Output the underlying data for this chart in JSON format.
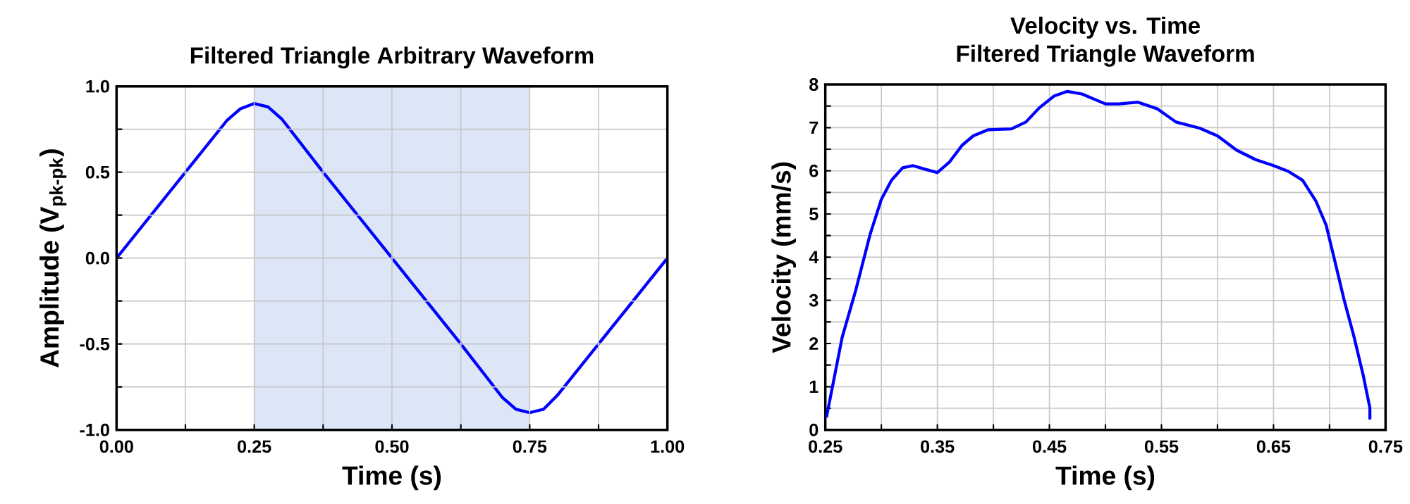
{
  "chart_data": [
    {
      "type": "line",
      "title": "Filtered Triangle Arbitrary Waveform",
      "xlabel": "Time (s)",
      "ylabel": "Amplitude (V$_{pk-pk}$)",
      "x": [
        0,
        0.125,
        0.2,
        0.225,
        0.25,
        0.275,
        0.3,
        0.375,
        0.5,
        0.625,
        0.7,
        0.725,
        0.75,
        0.775,
        0.8,
        0.875,
        1
      ],
      "series": [
        {
          "color": "#0000ff",
          "values": [
            0,
            0.5,
            0.8,
            0.87,
            0.9,
            0.88,
            0.81,
            0.5,
            0,
            -0.5,
            -0.81,
            -0.88,
            -0.9,
            -0.88,
            -0.8,
            -0.5,
            0
          ]
        }
      ],
      "xlim": [
        0,
        1
      ],
      "ylim": [
        -1,
        1
      ],
      "xticks": [
        {
          "value": 0,
          "label": "0.00"
        },
        {
          "value": 0.125,
          "label": null
        },
        {
          "value": 0.25,
          "label": "0.25"
        },
        {
          "value": 0.375,
          "label": null
        },
        {
          "value": 0.5,
          "label": "0.50"
        },
        {
          "value": 0.625,
          "label": null
        },
        {
          "value": 0.75,
          "label": "0.75"
        },
        {
          "value": 0.875,
          "label": null
        },
        {
          "value": 1,
          "label": "1.00"
        }
      ],
      "yticks": [
        {
          "value": -1,
          "label": "-1.0"
        },
        {
          "value": -0.75,
          "label": null
        },
        {
          "value": -0.5,
          "label": "-0.5"
        },
        {
          "value": -0.25,
          "label": null
        },
        {
          "value": 0,
          "label": "0.0"
        },
        {
          "value": 0.25,
          "label": null
        },
        {
          "value": 0.5,
          "label": "0.5"
        },
        {
          "value": 0.75,
          "label": null
        },
        {
          "value": 1,
          "label": "1.0"
        }
      ],
      "bands": [
        {
          "axis": "x",
          "from": 0.25,
          "to": 0.75,
          "color": "#dce6f7"
        }
      ],
      "grid": true,
      "line_style": "solid"
    },
    {
      "type": "line",
      "title": "Velocity vs. Time",
      "subtitle": "Filtered Triangle Waveform",
      "xlabel": "Time (s)",
      "ylabel": "Velocity (mm/s)",
      "x": [
        0.251,
        0.265,
        0.277,
        0.29,
        0.3,
        0.309,
        0.319,
        0.328,
        0.34,
        0.35,
        0.361,
        0.372,
        0.382,
        0.395,
        0.416,
        0.429,
        0.441,
        0.454,
        0.466,
        0.479,
        0.5,
        0.512,
        0.529,
        0.546,
        0.563,
        0.584,
        0.6,
        0.617,
        0.634,
        0.65,
        0.663,
        0.676,
        0.688,
        0.697,
        0.705,
        0.713,
        0.722,
        0.73,
        0.736,
        0.736
      ],
      "series": [
        {
          "color": "#0000ff",
          "values": [
            0.29,
            2.14,
            3.22,
            4.53,
            5.34,
            5.78,
            6.07,
            6.12,
            6.03,
            5.96,
            6.21,
            6.59,
            6.81,
            6.95,
            6.97,
            7.13,
            7.46,
            7.73,
            7.84,
            7.78,
            7.55,
            7.55,
            7.59,
            7.44,
            7.13,
            6.99,
            6.81,
            6.48,
            6.26,
            6.12,
            5.99,
            5.78,
            5.29,
            4.74,
            3.88,
            3.01,
            2.14,
            1.27,
            0.51,
            0.24
          ]
        }
      ],
      "xlim": [
        0.25,
        0.75
      ],
      "ylim": [
        0,
        8
      ],
      "xticks": [
        0.25,
        {
          "value": 0.3,
          "label": null
        },
        0.35,
        {
          "value": 0.4,
          "label": null
        },
        0.45,
        {
          "value": 0.5,
          "label": null
        },
        0.55,
        {
          "value": 0.6,
          "label": null
        },
        0.65,
        {
          "value": 0.7,
          "label": null
        },
        0.75
      ],
      "yticks": [
        0,
        {
          "value": 0.5,
          "label": null
        },
        1,
        {
          "value": 1.5,
          "label": null
        },
        2,
        {
          "value": 2.5,
          "label": null
        },
        3,
        {
          "value": 3.5,
          "label": null
        },
        4,
        {
          "value": 4.5,
          "label": null
        },
        5,
        {
          "value": 5.5,
          "label": null
        },
        6,
        {
          "value": 6.5,
          "label": null
        },
        7,
        {
          "value": 7.5,
          "label": null
        },
        8
      ],
      "grid": true,
      "line_style": "solid"
    }
  ]
}
